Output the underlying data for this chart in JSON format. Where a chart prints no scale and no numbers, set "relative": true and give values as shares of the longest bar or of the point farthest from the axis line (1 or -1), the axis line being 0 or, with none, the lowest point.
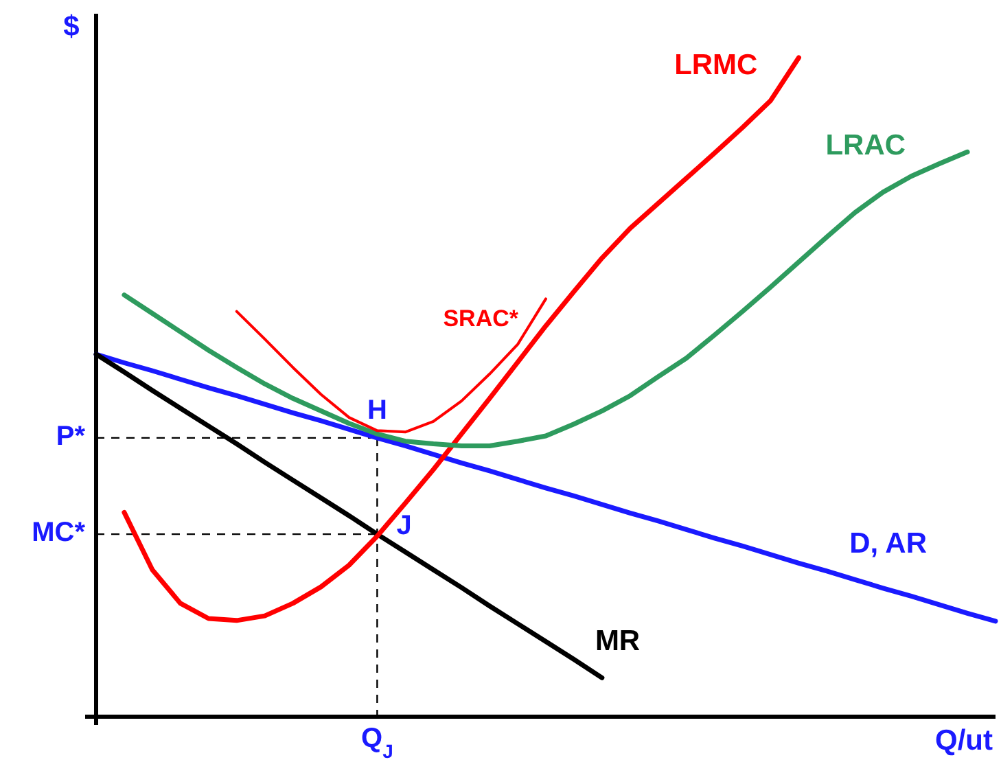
{
  "chart_data": {
    "type": "line",
    "relative": true,
    "xlabel": "Q/ut",
    "ylabel": "$",
    "categories": [
      null,
      null,
      null,
      null,
      null,
      null,
      null,
      null,
      null,
      null,
      null,
      null,
      null,
      null,
      null,
      null,
      null,
      null,
      null,
      null,
      null,
      null,
      null,
      null,
      null,
      null,
      null,
      null,
      null,
      null,
      null,
      null,
      null
    ],
    "series": [
      {
        "name": "D, AR",
        "color": "#1a1aff",
        "values": [
          0.55,
          0.537,
          0.525,
          0.512,
          0.499,
          0.487,
          0.474,
          0.461,
          0.449,
          0.436,
          0.423,
          0.411,
          0.398,
          0.385,
          0.373,
          0.36,
          0.347,
          0.335,
          0.322,
          0.309,
          0.297,
          0.284,
          0.271,
          0.259,
          0.246,
          0.233,
          0.221,
          0.208,
          0.195,
          0.183,
          0.17,
          0.157,
          0.145
        ]
      },
      {
        "name": "MR",
        "color": "#000000",
        "values": [
          0.55,
          0.523,
          0.495,
          0.468,
          0.441,
          0.414,
          0.386,
          0.359,
          0.332,
          0.305,
          0.277,
          0.25,
          0.223,
          0.196,
          0.168,
          0.141,
          0.114,
          0.087,
          0.059,
          null,
          null,
          null,
          null,
          null,
          null,
          null,
          null,
          null,
          null,
          null,
          null,
          null,
          null
        ]
      },
      {
        "name": "LRMC",
        "color": "#ff0000",
        "values": [
          null,
          0.31,
          0.223,
          0.172,
          0.149,
          0.146,
          0.153,
          0.172,
          0.197,
          0.23,
          0.274,
          0.324,
          0.375,
          0.429,
          0.483,
          0.538,
          0.593,
          0.645,
          0.696,
          0.741,
          0.779,
          0.817,
          0.855,
          0.894,
          0.935,
          1,
          null,
          null,
          null,
          null,
          null,
          null,
          null
        ]
      },
      {
        "name": "LRAC",
        "color": "#2e9b5e",
        "values": [
          null,
          0.64,
          0.612,
          0.584,
          0.556,
          0.53,
          0.505,
          0.483,
          0.464,
          0.445,
          0.429,
          0.418,
          0.414,
          0.411,
          0.411,
          0.418,
          0.426,
          0.444,
          0.464,
          0.487,
          0.516,
          0.544,
          0.579,
          0.615,
          0.652,
          0.69,
          0.728,
          0.765,
          0.796,
          0.82,
          0.839,
          0.857,
          null
        ]
      },
      {
        "name": "SRAC*",
        "color": "#ff0000",
        "values": [
          null,
          null,
          null,
          null,
          null,
          0.615,
          0.573,
          0.53,
          0.489,
          0.454,
          0.434,
          0.432,
          0.448,
          0.479,
          0.52,
          0.565,
          0.634,
          null,
          null,
          null,
          null,
          null,
          null,
          null,
          null,
          null,
          null,
          null,
          null,
          null,
          null,
          null,
          null
        ]
      }
    ],
    "annotations": [
      {
        "text": "H",
        "y": 0.427
      },
      "J",
      "P*",
      "MC*",
      "Q$_{J}$"
    ]
  }
}
